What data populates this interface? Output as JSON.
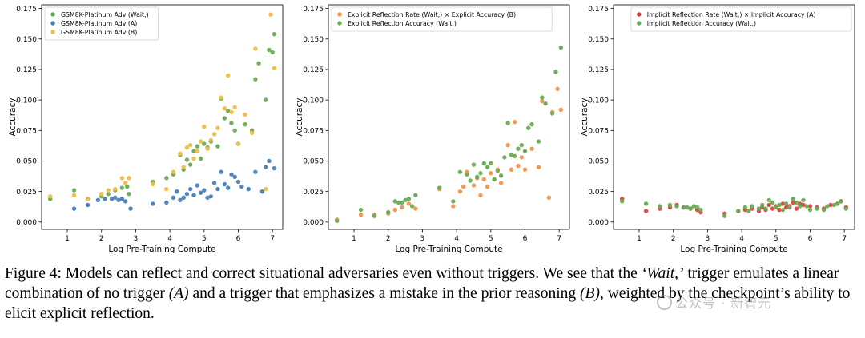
{
  "chart_data": [
    {
      "type": "scatter",
      "xlabel": "Log Pre-Training Compute",
      "ylabel": "Accuracy",
      "xlim": [
        0.25,
        7.3
      ],
      "ylim": [
        -0.006,
        0.178
      ],
      "xticks": [
        1,
        2,
        3,
        4,
        5,
        6,
        7
      ],
      "yticks": [
        0.0,
        0.025,
        0.05,
        0.075,
        0.1,
        0.125,
        0.15,
        0.175
      ],
      "ytick_labels": [
        "0.000",
        "0.025",
        "0.050",
        "0.075",
        "0.100",
        "0.125",
        "0.150",
        "0.175"
      ],
      "grid": false,
      "legend_position": "top-left",
      "series": [
        {
          "name": "GSM8K-Platinum Adv (Wait,)",
          "color": "#6aab54",
          "x": [
            0.5,
            1.2,
            1.6,
            2.0,
            2.2,
            2.4,
            2.6,
            2.75,
            2.8,
            3.5,
            3.9,
            4.1,
            4.3,
            4.4,
            4.5,
            4.6,
            4.7,
            4.8,
            4.9,
            5.0,
            5.1,
            5.2,
            5.4,
            5.5,
            5.6,
            5.7,
            5.8,
            5.9,
            6.0,
            6.2,
            6.4,
            6.5,
            6.6,
            6.8,
            6.9,
            7.0,
            7.05
          ],
          "y": [
            0.019,
            0.026,
            0.019,
            0.021,
            0.023,
            0.026,
            0.028,
            0.029,
            0.023,
            0.033,
            0.036,
            0.039,
            0.055,
            0.043,
            0.051,
            0.047,
            0.058,
            0.062,
            0.052,
            0.064,
            0.061,
            0.066,
            0.062,
            0.101,
            0.085,
            0.091,
            0.081,
            0.075,
            0.064,
            0.08,
            0.075,
            0.117,
            0.13,
            0.1,
            0.141,
            0.139,
            0.154
          ]
        },
        {
          "name": "GSM8K-Platinum Adv (A)",
          "color": "#4a80b8",
          "x": [
            1.2,
            1.6,
            1.9,
            2.1,
            2.3,
            2.4,
            2.5,
            2.6,
            2.7,
            2.85,
            3.5,
            3.9,
            4.1,
            4.2,
            4.3,
            4.4,
            4.5,
            4.6,
            4.7,
            4.8,
            4.9,
            5.0,
            5.1,
            5.2,
            5.3,
            5.4,
            5.5,
            5.6,
            5.7,
            5.8,
            5.9,
            6.0,
            6.1,
            6.3,
            6.5,
            6.7,
            6.8,
            6.9,
            7.05
          ],
          "y": [
            0.011,
            0.014,
            0.018,
            0.019,
            0.019,
            0.02,
            0.018,
            0.019,
            0.017,
            0.011,
            0.015,
            0.016,
            0.02,
            0.025,
            0.018,
            0.02,
            0.023,
            0.027,
            0.022,
            0.03,
            0.024,
            0.026,
            0.02,
            0.021,
            0.032,
            0.027,
            0.041,
            0.031,
            0.028,
            0.039,
            0.037,
            0.033,
            0.029,
            0.027,
            0.041,
            0.025,
            0.045,
            0.05,
            0.044
          ]
        },
        {
          "name": "GSM8K-Platinum Adv (B)",
          "color": "#efbe45",
          "x": [
            0.5,
            1.2,
            1.6,
            2.0,
            2.2,
            2.4,
            2.6,
            2.7,
            2.8,
            3.5,
            3.9,
            4.1,
            4.3,
            4.4,
            4.5,
            4.6,
            4.7,
            4.8,
            4.9,
            5.0,
            5.1,
            5.2,
            5.3,
            5.4,
            5.5,
            5.6,
            5.7,
            5.8,
            5.9,
            6.0,
            6.2,
            6.4,
            6.5,
            6.8,
            6.95,
            7.05
          ],
          "y": [
            0.021,
            0.022,
            0.019,
            0.023,
            0.026,
            0.027,
            0.036,
            0.032,
            0.036,
            0.031,
            0.027,
            0.041,
            0.056,
            0.045,
            0.061,
            0.063,
            0.052,
            0.058,
            0.066,
            0.078,
            0.06,
            0.067,
            0.072,
            0.077,
            0.102,
            0.093,
            0.12,
            0.09,
            0.094,
            0.064,
            0.088,
            0.073,
            0.142,
            0.027,
            0.17,
            0.126
          ]
        }
      ]
    },
    {
      "type": "scatter",
      "xlabel": "Log Pre-Training Compute",
      "ylabel": "Accuracy",
      "xlim": [
        0.25,
        7.3
      ],
      "ylim": [
        -0.006,
        0.178
      ],
      "xticks": [
        1,
        2,
        3,
        4,
        5,
        6,
        7
      ],
      "yticks": [
        0.0,
        0.025,
        0.05,
        0.075,
        0.1,
        0.125,
        0.15,
        0.175
      ],
      "ytick_labels": [
        "0.000",
        "0.025",
        "0.050",
        "0.075",
        "0.100",
        "0.125",
        "0.150",
        "0.175"
      ],
      "grid": false,
      "legend_position": "top-left",
      "series": [
        {
          "name": "Explicit Reflection Rate (Wait,) × Explicit Accuracy (B)",
          "color": "#f0944c",
          "x": [
            0.5,
            1.2,
            1.6,
            2.0,
            2.2,
            2.4,
            2.6,
            2.8,
            3.5,
            3.9,
            4.1,
            4.2,
            4.3,
            4.5,
            4.6,
            4.7,
            4.8,
            4.9,
            5.0,
            5.1,
            5.2,
            5.3,
            5.5,
            5.6,
            5.7,
            5.8,
            5.9,
            6.0,
            6.2,
            6.4,
            6.5,
            6.7,
            6.8,
            6.95,
            7.05
          ],
          "y": [
            0.002,
            0.006,
            0.006,
            0.007,
            0.01,
            0.012,
            0.015,
            0.011,
            0.027,
            0.013,
            0.025,
            0.029,
            0.041,
            0.03,
            0.036,
            0.022,
            0.035,
            0.029,
            0.04,
            0.035,
            0.043,
            0.032,
            0.063,
            0.043,
            0.082,
            0.046,
            0.053,
            0.043,
            0.06,
            0.045,
            0.099,
            0.02,
            0.09,
            0.109,
            0.092
          ]
        },
        {
          "name": "Explicit Reflection Accuracy (Wait,)",
          "color": "#6aab54",
          "x": [
            0.5,
            1.2,
            1.6,
            2.0,
            2.2,
            2.3,
            2.4,
            2.5,
            2.6,
            2.7,
            2.8,
            3.5,
            3.9,
            4.1,
            4.3,
            4.4,
            4.5,
            4.6,
            4.7,
            4.8,
            4.9,
            5.0,
            5.1,
            5.2,
            5.3,
            5.4,
            5.5,
            5.6,
            5.7,
            5.8,
            5.9,
            6.0,
            6.1,
            6.2,
            6.4,
            6.5,
            6.6,
            6.8,
            6.9,
            7.05
          ],
          "y": [
            0.001,
            0.01,
            0.005,
            0.008,
            0.017,
            0.016,
            0.016,
            0.018,
            0.019,
            0.013,
            0.022,
            0.028,
            0.017,
            0.041,
            0.039,
            0.034,
            0.047,
            0.037,
            0.04,
            0.048,
            0.045,
            0.048,
            0.035,
            0.042,
            0.038,
            0.053,
            0.081,
            0.055,
            0.054,
            0.06,
            0.063,
            0.058,
            0.077,
            0.08,
            0.066,
            0.102,
            0.097,
            0.089,
            0.123,
            0.143
          ]
        }
      ]
    },
    {
      "type": "scatter",
      "xlabel": "Log Pre-Training Compute",
      "ylabel": "Accuracy",
      "xlim": [
        0.25,
        7.3
      ],
      "ylim": [
        -0.006,
        0.178
      ],
      "xticks": [
        1,
        2,
        3,
        4,
        5,
        6,
        7
      ],
      "yticks": [
        0.0,
        0.025,
        0.05,
        0.075,
        0.1,
        0.125,
        0.15,
        0.175
      ],
      "ytick_labels": [
        "0.000",
        "0.025",
        "0.050",
        "0.075",
        "0.100",
        "0.125",
        "0.150",
        "0.175"
      ],
      "grid": false,
      "legend_position": "top-right",
      "series": [
        {
          "name": "Implicit Reflection Rate (Wait,) × Implicit Accuracy (A)",
          "color": "#d9433f",
          "x": [
            0.5,
            1.2,
            1.6,
            1.9,
            2.1,
            2.3,
            2.5,
            2.7,
            2.8,
            3.5,
            3.9,
            4.1,
            4.3,
            4.5,
            4.6,
            4.7,
            4.8,
            4.9,
            5.0,
            5.1,
            5.2,
            5.3,
            5.4,
            5.5,
            5.6,
            5.7,
            5.8,
            6.0,
            6.2,
            6.4,
            6.6,
            6.8,
            6.9,
            7.05
          ],
          "y": [
            0.019,
            0.009,
            0.011,
            0.012,
            0.014,
            0.012,
            0.011,
            0.01,
            0.008,
            0.007,
            0.009,
            0.01,
            0.011,
            0.009,
            0.012,
            0.01,
            0.014,
            0.011,
            0.013,
            0.01,
            0.015,
            0.012,
            0.013,
            0.016,
            0.011,
            0.015,
            0.014,
            0.013,
            0.012,
            0.011,
            0.014,
            0.015,
            0.017,
            0.012
          ]
        },
        {
          "name": "Implicit Reflection Accuracy (Wait,)",
          "color": "#6aab54",
          "x": [
            0.5,
            1.2,
            1.6,
            1.9,
            2.1,
            2.3,
            2.4,
            2.5,
            2.6,
            2.7,
            2.8,
            3.5,
            3.9,
            4.1,
            4.2,
            4.3,
            4.5,
            4.6,
            4.7,
            4.8,
            4.9,
            5.0,
            5.1,
            5.2,
            5.3,
            5.4,
            5.5,
            5.6,
            5.7,
            5.8,
            5.9,
            6.0,
            6.2,
            6.4,
            6.5,
            6.7,
            6.8,
            6.9,
            7.05
          ],
          "y": [
            0.017,
            0.015,
            0.013,
            0.014,
            0.013,
            0.012,
            0.012,
            0.011,
            0.013,
            0.012,
            0.01,
            0.005,
            0.009,
            0.012,
            0.009,
            0.013,
            0.011,
            0.014,
            0.011,
            0.018,
            0.016,
            0.012,
            0.014,
            0.01,
            0.015,
            0.012,
            0.019,
            0.016,
            0.013,
            0.018,
            0.013,
            0.01,
            0.011,
            0.01,
            0.013,
            0.014,
            0.015,
            0.017,
            0.011
          ]
        }
      ]
    }
  ],
  "caption": {
    "label": "Figure 4:",
    "text_1": " Models can reflect and correct situational adversaries even without triggers. We see that the ",
    "trigger": "‘Wait,’",
    "text_2": " trigger emulates a linear combination of no trigger ",
    "a": "(A)",
    "text_3": " and a trigger that emphasizes a mistake in the prior reasoning ",
    "b": "(B)",
    "text_4": ", weighted by the checkpoint’s ability to elicit explicit reflection."
  },
  "watermark": "公众号 · 新智元"
}
